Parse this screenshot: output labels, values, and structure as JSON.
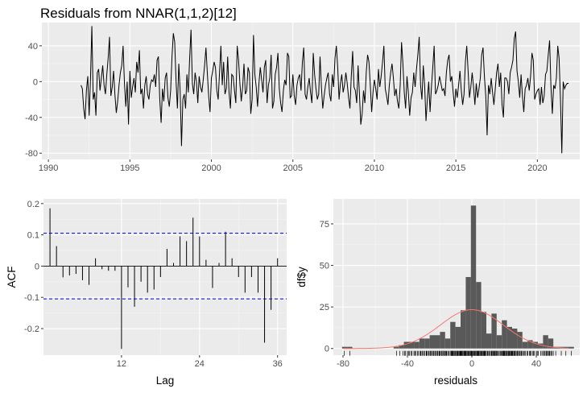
{
  "chart_data": [
    {
      "type": "line",
      "title": "Residuals from NNAR(1,1,2)[12]",
      "xlabel": "",
      "ylabel": "",
      "xlim": [
        1989.6,
        2022.6
      ],
      "ylim": [
        -87,
        66
      ],
      "x_ticks": [
        1990,
        1995,
        2000,
        2005,
        2010,
        2015,
        2020
      ],
      "y_ticks": [
        -80,
        -40,
        0,
        40
      ],
      "series": [
        {
          "start": 1992.0,
          "frequency": 12,
          "values": [
            -4,
            -8,
            -30,
            -42,
            -10,
            6,
            -38,
            3,
            62,
            -20,
            -12,
            -38,
            10,
            14,
            -10,
            4,
            18,
            -4,
            -14,
            8,
            26,
            50,
            -16,
            -6,
            12,
            -15,
            -35,
            -22,
            -4,
            10,
            18,
            40,
            -2,
            -28,
            0,
            -48,
            12,
            -18,
            -6,
            4,
            -12,
            22,
            10,
            35,
            -14,
            -8,
            -30,
            -4,
            6,
            -14,
            -20,
            -4,
            2,
            0,
            8,
            -6,
            24,
            28,
            -20,
            -46,
            -8,
            -22,
            4,
            10,
            -18,
            -28,
            -10,
            28,
            54,
            44,
            0,
            -30,
            20,
            -10,
            -72,
            -20,
            -14,
            -30,
            8,
            -12,
            26,
            58,
            -2,
            -14,
            10,
            0,
            -24,
            6,
            -6,
            -12,
            2,
            18,
            38,
            10,
            -16,
            -34,
            4,
            12,
            22,
            16,
            -10,
            -20,
            10,
            40,
            -4,
            22,
            -14,
            -8,
            28,
            -12,
            -30,
            8,
            6,
            -10,
            -24,
            40,
            24,
            -2,
            -22,
            -6,
            20,
            -14,
            -10,
            16,
            10,
            -36,
            -20,
            52,
            8,
            -6,
            -28,
            -2,
            16,
            2,
            -12,
            16,
            24,
            -24,
            -4,
            4,
            30,
            -30,
            -22,
            8,
            16,
            32,
            -8,
            -24,
            -34,
            -10,
            2,
            -4,
            32,
            28,
            -18,
            -16,
            8,
            -16,
            -26,
            -4,
            4,
            8,
            -10,
            22,
            38,
            -14,
            -20,
            -6,
            4,
            -12,
            -24,
            32,
            8,
            -8,
            -20,
            -14,
            28,
            -6,
            -30,
            -16,
            -4,
            4,
            10,
            -14,
            -22,
            8,
            -6,
            26,
            40,
            16,
            -20,
            -2,
            8,
            -12,
            -4,
            10,
            -2,
            -18,
            -30,
            6,
            34,
            -6,
            -10,
            -24,
            18,
            -14,
            -48,
            -36,
            -10,
            -24,
            10,
            30,
            22,
            -4,
            -34,
            -12,
            2,
            -8,
            -20,
            14,
            -6,
            6,
            22,
            40,
            -8,
            -16,
            -26,
            -4,
            10,
            20,
            4,
            -16,
            -8,
            -22,
            -30,
            -4,
            44,
            20,
            -12,
            -30,
            6,
            -12,
            -38,
            -18,
            -12,
            10,
            -6,
            14,
            30,
            50,
            -4,
            -20,
            18,
            -4,
            -44,
            -20,
            0,
            -34,
            -6,
            16,
            40,
            -14,
            -10,
            -4,
            6,
            -2,
            -10,
            -8,
            -16,
            10,
            24,
            30,
            0,
            6,
            -12,
            -28,
            -8,
            -18,
            -4,
            12,
            -10,
            -26,
            -14,
            22,
            40,
            12,
            -18,
            -6,
            10,
            -6,
            -26,
            -2,
            -18,
            -8,
            4,
            30,
            38,
            6,
            -16,
            -60,
            -4,
            -14,
            4,
            -12,
            -26,
            -8,
            10,
            20,
            -6,
            10,
            -26,
            -40,
            4,
            4,
            0,
            -14,
            10,
            16,
            24,
            48,
            56,
            12,
            0,
            -18,
            8,
            -16,
            -34,
            -8,
            -4,
            4,
            -10,
            6,
            32,
            24,
            -20,
            -14,
            -10,
            -8,
            -26,
            -6,
            -24,
            -16,
            8,
            12,
            30,
            46,
            -6,
            -36,
            -4,
            -8,
            4,
            40,
            26,
            -20,
            -80,
            0,
            -8,
            -4,
            -2,
            -2
          ]
        }
      ]
    },
    {
      "type": "bar",
      "title": "",
      "xlabel": "Lag",
      "ylabel": "ACF",
      "xlim": [
        0,
        37.4
      ],
      "ylim": [
        -0.285,
        0.215
      ],
      "x_ticks": [
        12,
        24,
        36
      ],
      "y_ticks": [
        -0.2,
        -0.1,
        0.0,
        0.1,
        0.2
      ],
      "ci_bound": 0.105,
      "lags": [
        1,
        2,
        3,
        4,
        5,
        6,
        7,
        8,
        9,
        10,
        11,
        12,
        13,
        14,
        15,
        16,
        17,
        18,
        19,
        20,
        21,
        22,
        23,
        24,
        25,
        26,
        27,
        28,
        29,
        30,
        31,
        32,
        33,
        34,
        35,
        36
      ],
      "values": [
        0.185,
        0.064,
        -0.036,
        -0.03,
        -0.025,
        -0.045,
        -0.06,
        0.025,
        -0.01,
        -0.015,
        -0.015,
        -0.265,
        -0.068,
        -0.13,
        -0.05,
        -0.085,
        -0.075,
        -0.035,
        0.055,
        0.01,
        0.095,
        0.08,
        0.155,
        0.095,
        0.02,
        -0.07,
        0.01,
        0.11,
        0.025,
        -0.035,
        -0.085,
        -0.035,
        -0.085,
        -0.245,
        -0.14,
        0.025
      ]
    },
    {
      "type": "histogram",
      "title": "",
      "xlabel": "residuals",
      "ylabel": "df$y",
      "xlim": [
        -86,
        67
      ],
      "ylim": [
        -4,
        90
      ],
      "x_ticks": [
        -80,
        -40,
        0,
        40
      ],
      "y_ticks": [
        0,
        25,
        50,
        75
      ],
      "bin_width": 3.2,
      "bins": [
        {
          "x": -79.0,
          "count": 1
        },
        {
          "x": -75.8,
          "count": 1
        },
        {
          "x": -47.0,
          "count": 1
        },
        {
          "x": -43.8,
          "count": 2
        },
        {
          "x": -40.6,
          "count": 4
        },
        {
          "x": -37.4,
          "count": 4
        },
        {
          "x": -34.2,
          "count": 4
        },
        {
          "x": -31.0,
          "count": 6
        },
        {
          "x": -27.8,
          "count": 6
        },
        {
          "x": -24.6,
          "count": 8
        },
        {
          "x": -21.4,
          "count": 8
        },
        {
          "x": -18.2,
          "count": 10
        },
        {
          "x": -15.0,
          "count": 6
        },
        {
          "x": -11.8,
          "count": 16
        },
        {
          "x": -8.6,
          "count": 13
        },
        {
          "x": -5.4,
          "count": 23
        },
        {
          "x": -2.2,
          "count": 43
        },
        {
          "x": 1.0,
          "count": 86
        },
        {
          "x": 4.2,
          "count": 40
        },
        {
          "x": 7.4,
          "count": 22
        },
        {
          "x": 10.6,
          "count": 9
        },
        {
          "x": 13.8,
          "count": 21
        },
        {
          "x": 17.0,
          "count": 8
        },
        {
          "x": 20.2,
          "count": 17
        },
        {
          "x": 23.4,
          "count": 13
        },
        {
          "x": 26.6,
          "count": 12
        },
        {
          "x": 29.8,
          "count": 10
        },
        {
          "x": 33.0,
          "count": 4
        },
        {
          "x": 36.2,
          "count": 5
        },
        {
          "x": 39.4,
          "count": 4
        },
        {
          "x": 42.6,
          "count": 3
        },
        {
          "x": 45.8,
          "count": 8
        },
        {
          "x": 49.0,
          "count": 6
        },
        {
          "x": 52.2,
          "count": 1
        },
        {
          "x": 55.4,
          "count": 1
        },
        {
          "x": 58.6,
          "count": 1
        },
        {
          "x": 61.8,
          "count": 1
        }
      ],
      "density_curve": {
        "mean": 0,
        "sd": 19.5,
        "n": 357
      },
      "colors": {
        "bars": "#595959",
        "curve": "#f8766d",
        "rug": "#000000"
      }
    }
  ],
  "colors": {
    "panel": "#ebebeb",
    "grid_major": "#ffffff",
    "ci": "#0000cc",
    "line": "#000000"
  }
}
